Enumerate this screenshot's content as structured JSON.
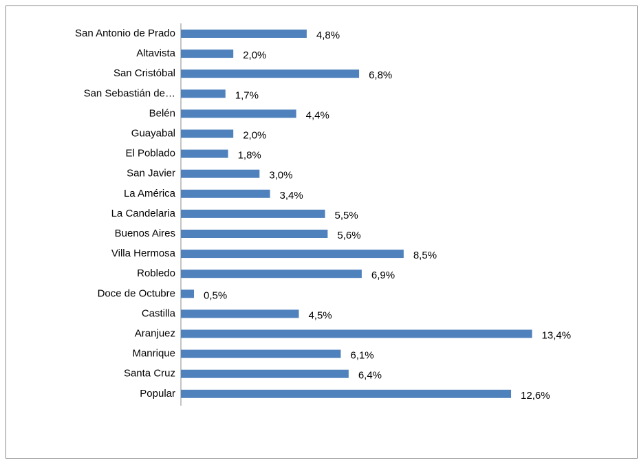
{
  "chart_data": {
    "type": "bar",
    "orientation": "horizontal",
    "color": "#4f81bd",
    "categories": [
      "San Antonio de Prado",
      "Altavista",
      "San Cristóbal",
      "San Sebastián de…",
      "Belén",
      "Guayabal",
      "El Poblado",
      "San Javier",
      "La América",
      "La Candelaria",
      "Buenos Aires",
      "Villa Hermosa",
      "Robledo",
      "Doce de Octubre",
      "Castilla",
      "Aranjuez",
      "Manrique",
      "Santa Cruz",
      "Popular"
    ],
    "values": [
      4.8,
      2.0,
      6.8,
      1.7,
      4.4,
      2.0,
      1.8,
      3.0,
      3.4,
      5.5,
      5.6,
      8.5,
      6.9,
      0.5,
      4.5,
      13.4,
      6.1,
      6.4,
      12.6
    ],
    "value_labels": [
      "4,8%",
      "2,0%",
      "6,8%",
      "1,7%",
      "4,4%",
      "2,0%",
      "1,8%",
      "3,0%",
      "3,4%",
      "5,5%",
      "5,6%",
      "8,5%",
      "6,9%",
      "0,5%",
      "4,5%",
      "13,4%",
      "6,1%",
      "6,4%",
      "12,6%"
    ]
  }
}
